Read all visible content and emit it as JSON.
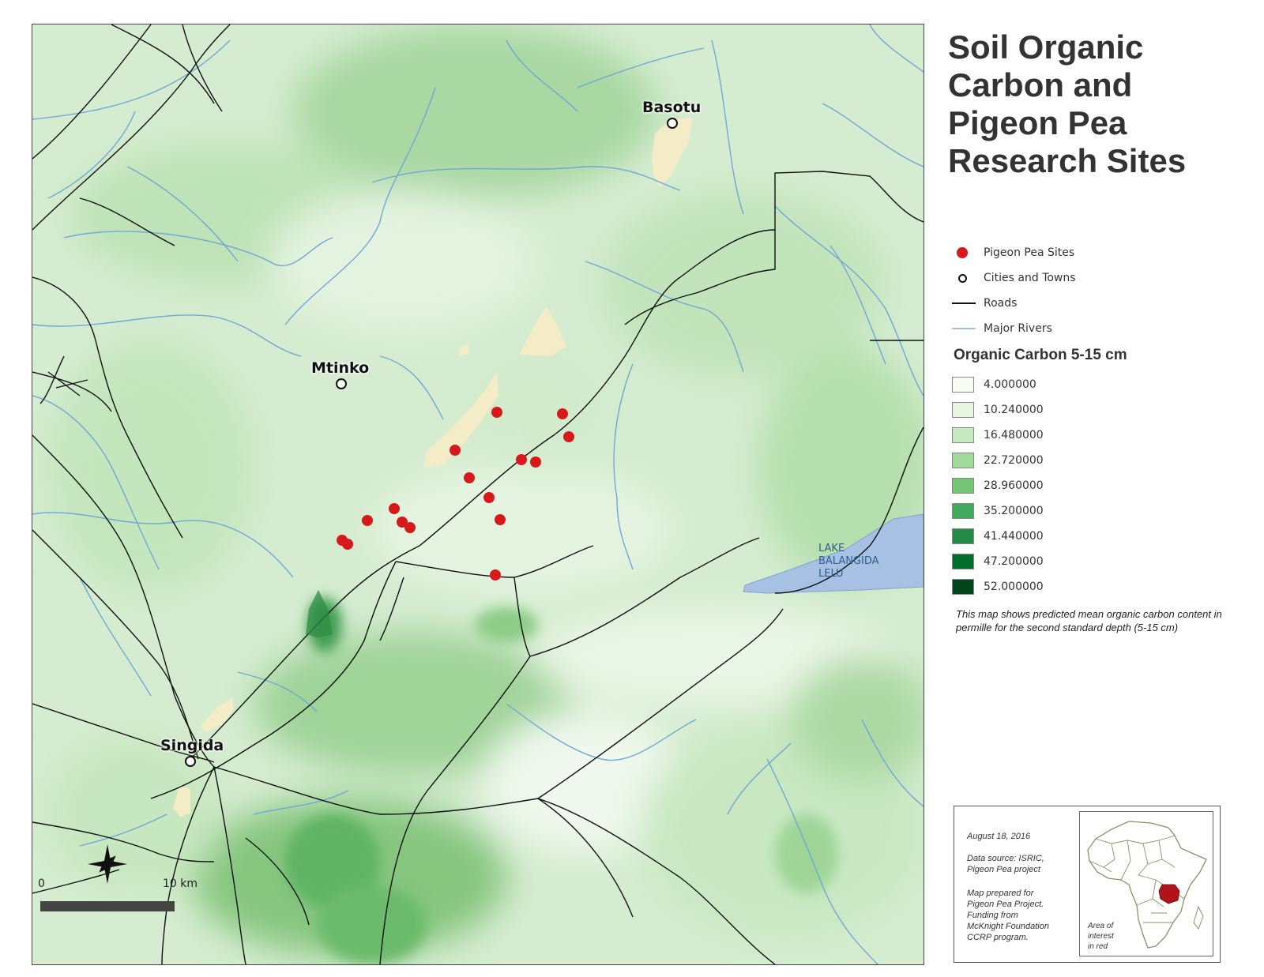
{
  "title": "Soil Organic\nCarbon and\nPigeon Pea\nResearch Sites",
  "places": {
    "basotu": "Basotu",
    "mtinko": "Mtinko",
    "singida": "Singida",
    "lake": "LAKE\nBALANGIDA\nLELU"
  },
  "legend": {
    "pigeon_pea_sites": "Pigeon Pea Sites",
    "cities_and_towns": "Cities and Towns",
    "roads": "Roads",
    "major_rivers": "Major Rivers"
  },
  "carbon_legend": {
    "heading": "Organic Carbon 5-15 cm",
    "classes": [
      {
        "label": "4.000000",
        "color": "#f7fcf5"
      },
      {
        "label": "10.240000",
        "color": "#e5f5e0"
      },
      {
        "label": "16.480000",
        "color": "#c7e9c0"
      },
      {
        "label": "22.720000",
        "color": "#a1d99b"
      },
      {
        "label": "28.960000",
        "color": "#74c476"
      },
      {
        "label": "35.200000",
        "color": "#41ab5d"
      },
      {
        "label": "41.440000",
        "color": "#238b45"
      },
      {
        "label": "47.200000",
        "color": "#006d2c"
      },
      {
        "label": "52.000000",
        "color": "#00441b"
      }
    ]
  },
  "description": "This map shows predicted mean organic carbon content in permille for the second standard depth (5-15 cm)",
  "info": {
    "date": "August 18, 2016",
    "data_source": "Data source:  ISRIC,\nPigeon Pea project",
    "prepared": "Map prepared for\nPigeon Pea Project.\nFunding from\nMcKnight Foundation\nCCRP program.",
    "inset_caption": "Area of\ninterest\nin red"
  },
  "scale_bar": {
    "start": "0",
    "end": "10 km"
  },
  "colors": {
    "site": "#d7191c",
    "river": "#6fa8d6",
    "road": "#111111",
    "lake": "#a6c1e3",
    "bare": "#f4ecc6",
    "inset_highlight": "#b0141a"
  }
}
